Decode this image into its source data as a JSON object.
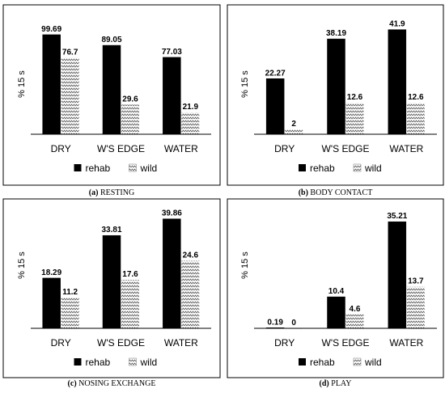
{
  "colors": {
    "rehab": "#000000",
    "wild_fill": "#ffffff",
    "wild_zigzag": "#555555",
    "frame": "#000000"
  },
  "chart_data": [
    {
      "type": "bar",
      "panel": "a",
      "caption_label": "(a)",
      "caption_text": "RESTING",
      "ylabel": "% 15 s",
      "categories": [
        "DRY",
        "W'S EDGE",
        "WATER"
      ],
      "series": [
        {
          "name": "rehab",
          "values": [
            99.69,
            89.05,
            77.03
          ],
          "labels": [
            "99.69",
            "89.05",
            "77.03"
          ]
        },
        {
          "name": "wild",
          "values": [
            76.7,
            29.6,
            21.9
          ],
          "labels": [
            "76.7",
            "29.6",
            "21.9"
          ]
        }
      ],
      "ylim": [
        0,
        115
      ],
      "legend": "bottom",
      "grid": false
    },
    {
      "type": "bar",
      "panel": "b",
      "caption_label": "(b)",
      "caption_text": "BODY CONTACT",
      "ylabel": "% 15 s",
      "categories": [
        "DRY",
        "W'S EDGE",
        "WATER"
      ],
      "series": [
        {
          "name": "rehab",
          "values": [
            22.27,
            38.19,
            41.9
          ],
          "labels": [
            "22.27",
            "38.19",
            "41.9"
          ]
        },
        {
          "name": "wild",
          "values": [
            2,
            12.6,
            12.6
          ],
          "labels": [
            "2",
            "12.6",
            "12.6"
          ]
        }
      ],
      "ylim": [
        0,
        46
      ],
      "legend": "bottom",
      "grid": false
    },
    {
      "type": "bar",
      "panel": "c",
      "caption_label": "(c)",
      "caption_text": "NOSING EXCHANGE",
      "ylabel": "% 15 s",
      "categories": [
        "DRY",
        "W'S EDGE",
        "WATER"
      ],
      "series": [
        {
          "name": "rehab",
          "values": [
            18.29,
            33.81,
            39.86
          ],
          "labels": [
            "18.29",
            "33.81",
            "39.86"
          ]
        },
        {
          "name": "wild",
          "values": [
            11.2,
            17.6,
            24.6
          ],
          "labels": [
            "11.2",
            "17.6",
            "24.6"
          ]
        }
      ],
      "ylim": [
        0,
        43
      ],
      "legend": "bottom",
      "grid": false
    },
    {
      "type": "bar",
      "panel": "d",
      "caption_label": "(d)",
      "caption_text": "PLAY",
      "ylabel": "% 15 s",
      "categories": [
        "DRY",
        "W'S EDGE",
        "WATER"
      ],
      "series": [
        {
          "name": "rehab",
          "values": [
            0.19,
            10.4,
            35.21
          ],
          "labels": [
            "0.19",
            "10.4",
            "35.21"
          ]
        },
        {
          "name": "wild",
          "values": [
            0,
            4.6,
            13.7
          ],
          "labels": [
            "0",
            "4.6",
            "13.7"
          ]
        }
      ],
      "ylim": [
        0,
        39
      ],
      "legend": "bottom",
      "grid": false
    }
  ]
}
